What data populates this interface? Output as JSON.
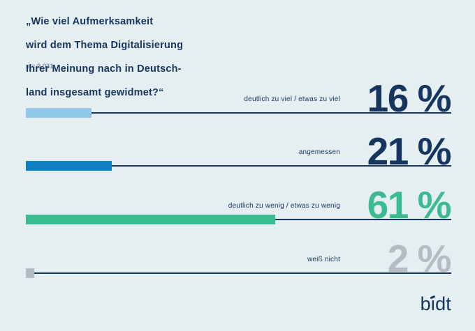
{
  "colors": {
    "background": "#e5eef0",
    "navy": "#16365f",
    "light_blue": "#91c8ea",
    "blue": "#0e81c4",
    "green": "#3bbb90",
    "gray": "#b5bcc4"
  },
  "header": {
    "title_lines": [
      "„Wie viel Aufmerksamkeit",
      "wird dem Thema Digitalisierung",
      "Ihrer Meinung nach in Deutsch-",
      "land insgesamt gewidmet?“"
    ],
    "sample_size": "n = 9.031"
  },
  "chart_data": {
    "type": "bar",
    "orientation": "horizontal",
    "title": "„Wie viel Aufmerksamkeit wird dem Thema Digitalisierung Ihrer Meinung nach in Deutschland insgesamt gewidmet?“",
    "sample_size": "n = 9.031",
    "categories": [
      "deutlich zu viel / etwas zu viel",
      "angemessen",
      "deutlich zu wenig / etwas zu wenig",
      "weiß nicht"
    ],
    "values": [
      16,
      21,
      61,
      2
    ],
    "value_labels": [
      "16 %",
      "21 %",
      "61 %",
      "2 %"
    ],
    "bar_colors": [
      "#91c8ea",
      "#0e81c4",
      "#3bbb90",
      "#b5bcc4"
    ],
    "value_colors": [
      "#16365f",
      "#16365f",
      "#3bbb90",
      "#b5bcc4"
    ],
    "axis_line_color": "#16365f",
    "xlim": [
      0,
      104
    ],
    "grid": false,
    "legend": false
  },
  "logo": {
    "text": "bidt"
  }
}
